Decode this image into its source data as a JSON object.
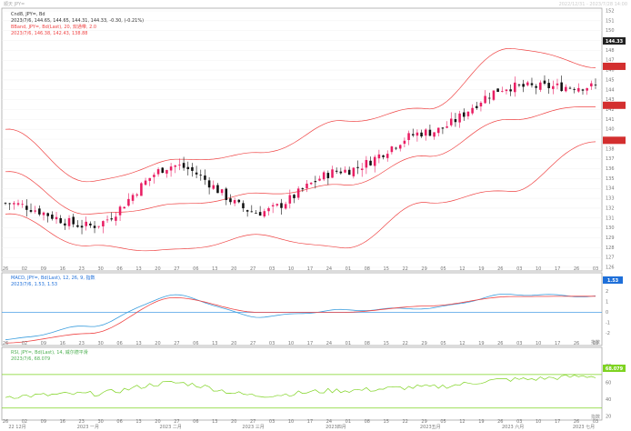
{
  "header": {
    "app_name": "顺天 JPY=",
    "date_range": "2022/12/31 - 2023/7/28 14:00"
  },
  "main": {
    "line1": "Cnd8, JPY=, Bd",
    "line2": "2023/7/6, 144.65, 144.65, 144.31, 144.33, -0.30, (-0.21%)",
    "line3": "BBand, JPY=, Bd(Last), 20, 双通带, 2.0",
    "line4": "2023/7/6, 146.38, 142.43, 138.88",
    "price_tag": "144.33"
  },
  "macd": {
    "line1": "MACD, JPY=, Bd(Last), 12, 26, 9, 指数",
    "line2": "2023/7/6, 1.53, 1.53",
    "tag": "1.53",
    "corner_label": "指数"
  },
  "rsi": {
    "line1": "RSI, JPY=, Bd(Last), 14, 威尔德平滑",
    "line2": "2023/7/6, 68.079",
    "tag": "68.079",
    "corner_label": "指数"
  },
  "colors": {
    "bull": "#e91e63",
    "bear": "#111111",
    "band": "#ef4444",
    "macd_line": "#3b9ede",
    "signal_line": "#ef4444",
    "rsi_line": "#7ed321",
    "tag_red": "#d32f2f",
    "tag_dark": "#222222",
    "tag_blue": "#1e6fd9",
    "tag_green": "#7ed321"
  },
  "chart_data": [
    {
      "type": "candlestick",
      "x": [
        "2022/12/26",
        "2023/1/27",
        "2023/2/27",
        "2023/3/30",
        "2023/4/28",
        "2023/5/29",
        "2023/6/28",
        "2023/7/6"
      ],
      "close": [
        132.5,
        130.2,
        136.3,
        131.6,
        135.8,
        139.7,
        144.3,
        144.33
      ],
      "bb_upper": [
        140.0,
        134.6,
        136.8,
        137.5,
        140.8,
        142.1,
        148.3,
        146.38
      ],
      "bb_middle": [
        135.7,
        131.3,
        132.3,
        133.4,
        134.3,
        137.3,
        141.1,
        142.43
      ],
      "bb_lower": [
        131.4,
        128.1,
        127.7,
        129.2,
        127.9,
        132.6,
        133.8,
        138.88
      ],
      "last": 144.33,
      "ylim": [
        126,
        152
      ],
      "y_ticks": [
        152,
        151,
        150,
        149,
        148,
        147,
        146,
        145,
        144,
        143,
        142,
        141,
        140,
        139,
        138,
        137,
        136,
        135,
        134,
        133,
        132,
        131,
        130,
        129,
        128,
        127,
        126
      ],
      "x_ticks": [
        "26",
        "02",
        "09",
        "16",
        "23",
        "30",
        "06",
        "13",
        "20",
        "27",
        "06",
        "13",
        "20",
        "27",
        "03",
        "10",
        "17",
        "24",
        "01",
        "08",
        "15",
        "22",
        "29",
        "05",
        "12",
        "19",
        "26",
        "03",
        "10",
        "17",
        "26",
        "03"
      ],
      "month_labels": [
        "22 12月",
        "2023 一月",
        "2023 二月",
        "2023 三月",
        "2023四月",
        "2023五月",
        "2023 六月",
        "2023 七月"
      ]
    },
    {
      "type": "line",
      "x": [
        "2022/12/26",
        "2023/1/27",
        "2023/2/27",
        "2023/3/30",
        "2023/4/28",
        "2023/5/29",
        "2023/6/28",
        "2023/7/6"
      ],
      "series": [
        {
          "values": [
            -2.6,
            -1.3,
            1.6,
            -0.4,
            0.2,
            0.4,
            1.7,
            1.53
          ]
        },
        {
          "values": [
            -2.9,
            -2.0,
            1.4,
            0.0,
            0.0,
            0.6,
            1.5,
            1.53
          ]
        }
      ],
      "ylim": [
        -2.8,
        2.2
      ],
      "y_ticks": [
        2,
        1,
        0,
        -1,
        -2
      ],
      "zero_line": 0
    },
    {
      "type": "line",
      "x": [
        "2022/12/26",
        "2023/1/27",
        "2023/2/27",
        "2023/3/30",
        "2023/4/28",
        "2023/5/29",
        "2023/6/28",
        "2023/7/6"
      ],
      "series": [
        {
          "values": [
            44.0,
            47.0,
            60.0,
            45.0,
            51.0,
            55.0,
            64.0,
            68.079
          ]
        }
      ],
      "ylim": [
        20,
        85
      ],
      "y_ticks": [
        80,
        60,
        40,
        20
      ],
      "levels": [
        70,
        30
      ]
    }
  ]
}
